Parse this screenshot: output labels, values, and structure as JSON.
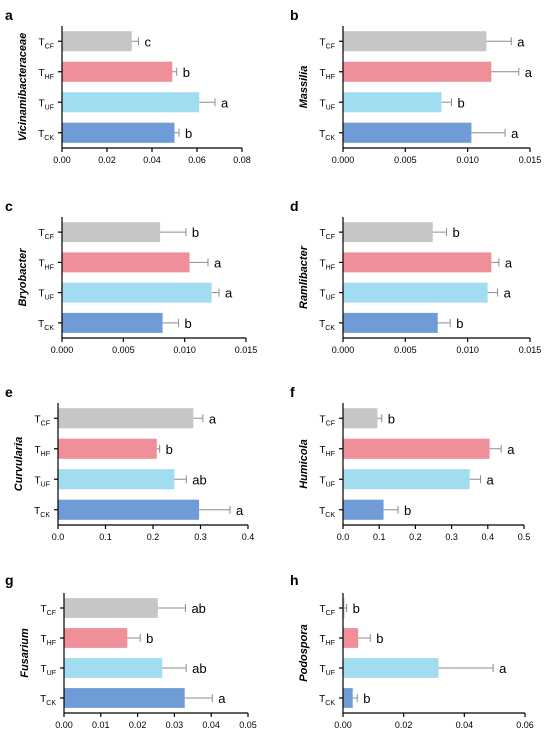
{
  "colors": {
    "T_CF": "#c6c6c4",
    "T_HF": "#ee8f9a",
    "T_UF": "#a2dcf1",
    "T_CK": "#6f9bd6"
  },
  "chart_data": [
    {
      "type": "bar",
      "orientation": "horizontal",
      "panel": "a",
      "ylabel": "Vicinamibacteraceae",
      "categories": [
        {
          "base": "T",
          "sub": "CF"
        },
        {
          "base": "T",
          "sub": "HF"
        },
        {
          "base": "T",
          "sub": "UF"
        },
        {
          "base": "T",
          "sub": "CK"
        }
      ],
      "values": [
        0.031,
        0.049,
        0.061,
        0.05
      ],
      "errors": [
        0.003,
        0.002,
        0.007,
        0.002
      ],
      "significance": [
        "c",
        "b",
        "a",
        "b"
      ],
      "xlim": [
        0,
        0.08
      ],
      "xticks": [
        "0.00",
        "0.02",
        "0.04",
        "0.06",
        "0.08"
      ]
    },
    {
      "type": "bar",
      "orientation": "horizontal",
      "panel": "b",
      "ylabel": "Massilia",
      "categories": [
        {
          "base": "T",
          "sub": "CF"
        },
        {
          "base": "T",
          "sub": "HF"
        },
        {
          "base": "T",
          "sub": "UF"
        },
        {
          "base": "T",
          "sub": "CK"
        }
      ],
      "values": [
        0.0115,
        0.0119,
        0.0079,
        0.0103
      ],
      "errors": [
        0.002,
        0.0022,
        0.0008,
        0.0027
      ],
      "significance": [
        "a",
        "a",
        "b",
        "a"
      ],
      "xlim": [
        0,
        0.015
      ],
      "xticks": [
        "0.000",
        "0.005",
        "0.010",
        "0.015"
      ]
    },
    {
      "type": "bar",
      "orientation": "horizontal",
      "panel": "c",
      "ylabel": "Bryobacter",
      "categories": [
        {
          "base": "T",
          "sub": "CF"
        },
        {
          "base": "T",
          "sub": "HF"
        },
        {
          "base": "T",
          "sub": "UF"
        },
        {
          "base": "T",
          "sub": "CK"
        }
      ],
      "values": [
        0.008,
        0.0104,
        0.0122,
        0.0082
      ],
      "errors": [
        0.0021,
        0.0015,
        0.0006,
        0.0013
      ],
      "significance": [
        "b",
        "a",
        "a",
        "b"
      ],
      "xlim": [
        0,
        0.015
      ],
      "xticks": [
        "0.000",
        "0.005",
        "0.010",
        "0.015"
      ]
    },
    {
      "type": "bar",
      "orientation": "horizontal",
      "panel": "d",
      "ylabel": "Ramlibacter",
      "categories": [
        {
          "base": "T",
          "sub": "CF"
        },
        {
          "base": "T",
          "sub": "HF"
        },
        {
          "base": "T",
          "sub": "UF"
        },
        {
          "base": "T",
          "sub": "CK"
        }
      ],
      "values": [
        0.0072,
        0.0119,
        0.0116,
        0.0076
      ],
      "errors": [
        0.0011,
        0.0006,
        0.0008,
        0.001
      ],
      "significance": [
        "b",
        "a",
        "a",
        "b"
      ],
      "xlim": [
        0,
        0.015
      ],
      "xticks": [
        "0.000",
        "0.005",
        "0.010",
        "0.015"
      ]
    },
    {
      "type": "bar",
      "orientation": "horizontal",
      "panel": "e",
      "ylabel": "Curvularia",
      "categories": [
        {
          "base": "T",
          "sub": "CF"
        },
        {
          "base": "T",
          "sub": "HF"
        },
        {
          "base": "T",
          "sub": "UF"
        },
        {
          "base": "T",
          "sub": "CK"
        }
      ],
      "values": [
        0.285,
        0.208,
        0.245,
        0.297
      ],
      "errors": [
        0.02,
        0.006,
        0.025,
        0.065
      ],
      "significance": [
        "a",
        "b",
        "ab",
        "a"
      ],
      "xlim": [
        0,
        0.4
      ],
      "xticks": [
        "0.0",
        "0.1",
        "0.2",
        "0.3",
        "0.4"
      ]
    },
    {
      "type": "bar",
      "orientation": "horizontal",
      "panel": "f",
      "ylabel": "Humicola",
      "categories": [
        {
          "base": "T",
          "sub": "CF"
        },
        {
          "base": "T",
          "sub": "HF"
        },
        {
          "base": "T",
          "sub": "UF"
        },
        {
          "base": "T",
          "sub": "CK"
        }
      ],
      "values": [
        0.095,
        0.405,
        0.35,
        0.112
      ],
      "errors": [
        0.012,
        0.032,
        0.03,
        0.04
      ],
      "significance": [
        "b",
        "a",
        "a",
        "b"
      ],
      "xlim": [
        0,
        0.5
      ],
      "xticks": [
        "0.0",
        "0.1",
        "0.2",
        "0.3",
        "0.4",
        "0.5"
      ]
    },
    {
      "type": "bar",
      "orientation": "horizontal",
      "panel": "g",
      "ylabel": "Fusarium",
      "categories": [
        {
          "base": "T",
          "sub": "CF"
        },
        {
          "base": "T",
          "sub": "HF"
        },
        {
          "base": "T",
          "sub": "UF"
        },
        {
          "base": "T",
          "sub": "CK"
        }
      ],
      "values": [
        0.0255,
        0.0172,
        0.0267,
        0.0328
      ],
      "errors": [
        0.0075,
        0.0035,
        0.0065,
        0.0075
      ],
      "significance": [
        "ab",
        "b",
        "ab",
        "a"
      ],
      "xlim": [
        0,
        0.05
      ],
      "xticks": [
        "0.00",
        "0.01",
        "0.02",
        "0.03",
        "0.04",
        "0.05"
      ]
    },
    {
      "type": "bar",
      "orientation": "horizontal",
      "panel": "h",
      "ylabel": "Podospora",
      "categories": [
        {
          "base": "T",
          "sub": "CF"
        },
        {
          "base": "T",
          "sub": "HF"
        },
        {
          "base": "T",
          "sub": "UF"
        },
        {
          "base": "T",
          "sub": "CK"
        }
      ],
      "values": [
        0.0005,
        0.005,
        0.0315,
        0.0032
      ],
      "errors": [
        0.0007,
        0.004,
        0.018,
        0.0015
      ],
      "significance": [
        "b",
        "b",
        "a",
        "b"
      ],
      "xlim": [
        0,
        0.06
      ],
      "xticks": [
        "0.00",
        "0.02",
        "0.04",
        "0.06"
      ]
    }
  ]
}
